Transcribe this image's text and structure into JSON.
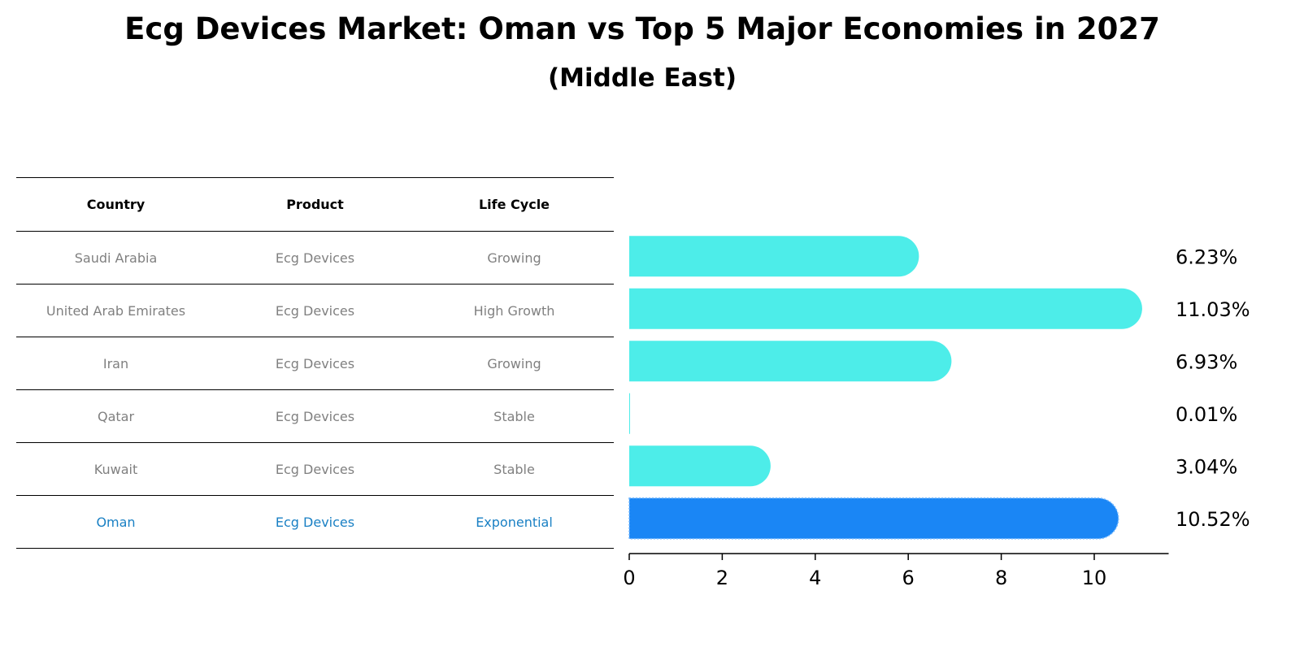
{
  "title": "Ecg Devices Market: Oman vs Top 5 Major Economies in 2027",
  "subtitle": "(Middle East)",
  "table": {
    "headers": [
      "Country",
      "Product",
      "Life Cycle"
    ],
    "rows": [
      {
        "country": "Saudi Arabia",
        "product": "Ecg Devices",
        "life_cycle": "Growing"
      },
      {
        "country": "United Arab Emirates",
        "product": "Ecg Devices",
        "life_cycle": "High Growth"
      },
      {
        "country": "Iran",
        "product": "Ecg Devices",
        "life_cycle": "Growing"
      },
      {
        "country": "Qatar",
        "product": "Ecg Devices",
        "life_cycle": "Stable"
      },
      {
        "country": "Kuwait",
        "product": "Ecg Devices",
        "life_cycle": "Stable"
      },
      {
        "country": "Oman",
        "product": "Ecg Devices",
        "life_cycle": "Exponential"
      }
    ]
  },
  "colors": {
    "bar": "#4dede9",
    "highlight_bar": "#1a86f5",
    "highlight_text": "#1a80c4",
    "muted_text": "#808080"
  },
  "chart_data": {
    "type": "bar",
    "orientation": "horizontal",
    "categories": [
      "Saudi Arabia",
      "United Arab Emirates",
      "Iran",
      "Qatar",
      "Kuwait",
      "Oman"
    ],
    "values": [
      6.23,
      11.03,
      6.93,
      0.01,
      3.04,
      10.52
    ],
    "data_labels": [
      "6.23%",
      "11.03%",
      "6.93%",
      "0.01%",
      "3.04%",
      "10.52%"
    ],
    "highlight_category": "Oman",
    "xticks": [
      0,
      2,
      4,
      6,
      8,
      10
    ],
    "xlim": [
      0,
      11.6
    ],
    "grid": false
  }
}
